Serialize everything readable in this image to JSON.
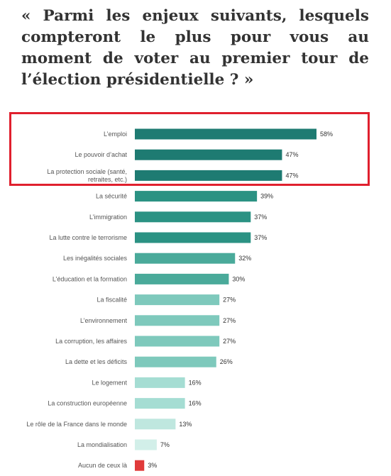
{
  "question": "« Parmi les enjeux suivants, lesquels compteront le plus pour vous au moment de voter au premier tour de l’élection présidentielle ? »",
  "highlight_color": "#e0202e",
  "chart_data": {
    "type": "bar",
    "orientation": "horizontal",
    "title": "",
    "xlabel": "",
    "ylabel": "",
    "xlim": [
      0,
      58
    ],
    "grid": false,
    "value_suffix": "%",
    "categories": [
      {
        "lines": [
          "L’emploi"
        ],
        "value": 58,
        "color": "#1e7b72"
      },
      {
        "lines": [
          "Le pouvoir d’achat"
        ],
        "value": 47,
        "color": "#1e7b72"
      },
      {
        "lines": [
          "La protection sociale (santé,",
          "retraites, etc.)"
        ],
        "value": 47,
        "color": "#1e7b72"
      },
      {
        "lines": [
          "La sécurité"
        ],
        "value": 39,
        "color": "#2b9283"
      },
      {
        "lines": [
          "L’immigration"
        ],
        "value": 37,
        "color": "#2b9283"
      },
      {
        "lines": [
          "La lutte contre le terrorisme"
        ],
        "value": 37,
        "color": "#2b9283"
      },
      {
        "lines": [
          "Les inégalités sociales"
        ],
        "value": 32,
        "color": "#4aaa9a"
      },
      {
        "lines": [
          "L’éducation et la formation"
        ],
        "value": 30,
        "color": "#4aaa9a"
      },
      {
        "lines": [
          "La fiscalité"
        ],
        "value": 27,
        "color": "#7ec9bc"
      },
      {
        "lines": [
          "L’environnement"
        ],
        "value": 27,
        "color": "#7ec9bc"
      },
      {
        "lines": [
          "La corruption, les affaires"
        ],
        "value": 27,
        "color": "#7ec9bc"
      },
      {
        "lines": [
          "La dette et les déficits"
        ],
        "value": 26,
        "color": "#7ec9bc"
      },
      {
        "lines": [
          "Le logement"
        ],
        "value": 16,
        "color": "#a5ddd3"
      },
      {
        "lines": [
          "La construction européenne"
        ],
        "value": 16,
        "color": "#a5ddd3"
      },
      {
        "lines": [
          "Le rôle de la France dans le monde"
        ],
        "value": 13,
        "color": "#bfe7df"
      },
      {
        "lines": [
          "La mondialisation"
        ],
        "value": 7,
        "color": "#d2efe9"
      },
      {
        "lines": [
          "Aucun de ceux là"
        ],
        "value": 3,
        "color": "#e03a3a"
      }
    ]
  }
}
